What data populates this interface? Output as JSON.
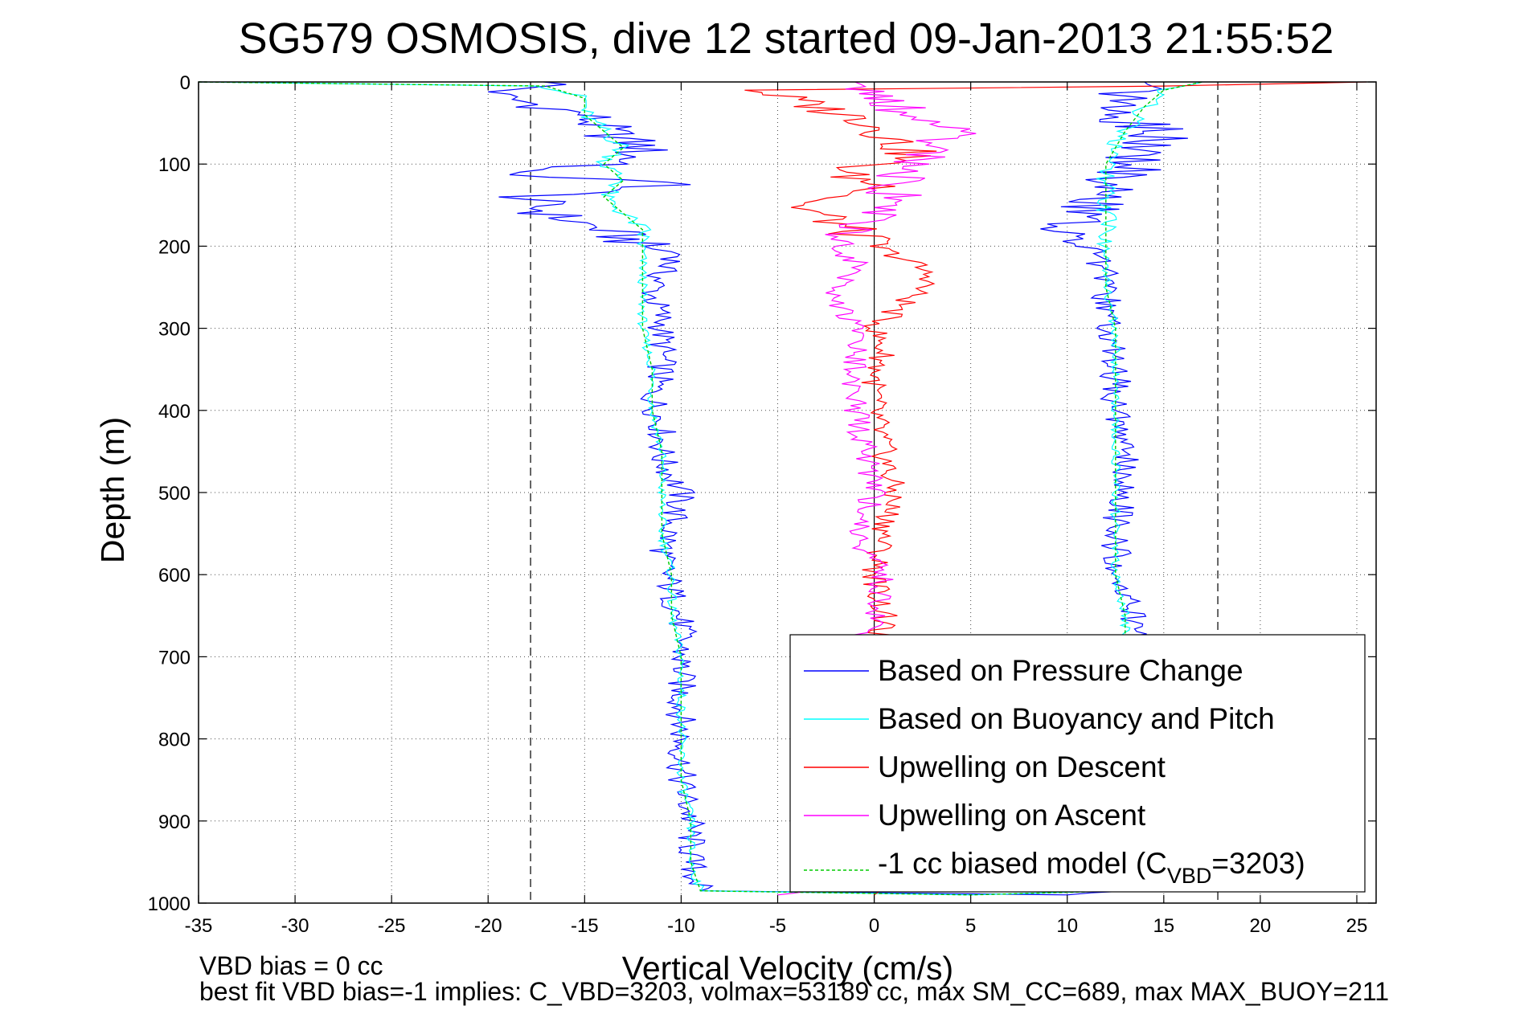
{
  "chart_data": {
    "type": "line",
    "title": "SG579 OSMOSIS, dive 12 started 09-Jan-2013 21:55:52",
    "xlabel": "Vertical Velocity (cm/s)",
    "ylabel": "Depth (m)",
    "xlim": [
      -35,
      26
    ],
    "ylim": [
      0,
      1000
    ],
    "y_reversed": true,
    "grid": true,
    "x_ticks": [
      "-35",
      "-30",
      "-25",
      "-20",
      "-15",
      "-10",
      "-5",
      "0",
      "5",
      "10",
      "15",
      "20",
      "25"
    ],
    "y_ticks": [
      "0",
      "100",
      "200",
      "300",
      "400",
      "500",
      "600",
      "700",
      "800",
      "900",
      "1000"
    ],
    "reference_lines": {
      "vertical_dashed_x": [
        -17.8,
        17.8
      ],
      "vertical_solid_x": [
        0
      ]
    },
    "legend": {
      "position": "bottom-right",
      "entries": [
        {
          "label": "Based on Pressure Change",
          "color": "#0000ff",
          "style": "solid"
        },
        {
          "label": "Based on Buoyancy and Pitch",
          "color": "#00ffff",
          "style": "solid"
        },
        {
          "label": "Upwelling on Descent",
          "color": "#ff0000",
          "style": "solid"
        },
        {
          "label": "Upwelling on Ascent",
          "color": "#ff00ff",
          "style": "solid"
        },
        {
          "label_prefix": "-1 cc biased model (C",
          "label_sub": "VBD",
          "label_suffix": "=3203)",
          "color": "#00cc00",
          "style": "dashed"
        }
      ]
    },
    "series": [
      {
        "name": "Based on Pressure Change",
        "color": "#0000ff",
        "points": [
          [
            0,
            -16
          ],
          [
            15,
            -20
          ],
          [
            40,
            -15
          ],
          [
            60,
            -14
          ],
          [
            80,
            -12
          ],
          [
            100,
            -13
          ],
          [
            110,
            -20
          ],
          [
            125,
            -10
          ],
          [
            140,
            -18
          ],
          [
            160,
            -17
          ],
          [
            180,
            -14
          ],
          [
            200,
            -12
          ],
          [
            210,
            -10
          ],
          [
            230,
            -11
          ],
          [
            260,
            -11.5
          ],
          [
            290,
            -11
          ],
          [
            320,
            -11
          ],
          [
            350,
            -11
          ],
          [
            380,
            -11.5
          ],
          [
            420,
            -11
          ],
          [
            460,
            -11
          ],
          [
            500,
            -10
          ],
          [
            540,
            -10.5
          ],
          [
            580,
            -11
          ],
          [
            620,
            -10.5
          ],
          [
            660,
            -10
          ],
          [
            700,
            -10
          ],
          [
            750,
            -10
          ],
          [
            800,
            -10
          ],
          [
            850,
            -10
          ],
          [
            900,
            -9.5
          ],
          [
            950,
            -9.5
          ],
          [
            985,
            -9
          ],
          [
            990,
            10
          ],
          [
            985,
            12.5
          ],
          [
            950,
            13
          ],
          [
            900,
            13.5
          ],
          [
            850,
            13.5
          ],
          [
            800,
            13.5
          ],
          [
            750,
            13.5
          ],
          [
            700,
            13
          ],
          [
            660,
            13.5
          ],
          [
            620,
            13
          ],
          [
            580,
            12.5
          ],
          [
            540,
            12.5
          ],
          [
            500,
            13
          ],
          [
            460,
            13
          ],
          [
            420,
            12.5
          ],
          [
            380,
            12.5
          ],
          [
            340,
            12.5
          ],
          [
            300,
            12
          ],
          [
            260,
            12
          ],
          [
            230,
            12
          ],
          [
            200,
            11
          ],
          [
            170,
            10
          ],
          [
            140,
            12
          ],
          [
            110,
            13
          ],
          [
            80,
            14
          ],
          [
            60,
            15
          ],
          [
            40,
            12
          ],
          [
            20,
            13
          ],
          [
            0,
            14
          ]
        ]
      },
      {
        "name": "Based on Buoyancy and Pitch",
        "color": "#00ffff",
        "points": [
          [
            0,
            -35
          ],
          [
            5,
            -17
          ],
          [
            20,
            -15
          ],
          [
            40,
            -15
          ],
          [
            60,
            -14
          ],
          [
            80,
            -13
          ],
          [
            100,
            -14
          ],
          [
            120,
            -13
          ],
          [
            140,
            -14
          ],
          [
            160,
            -13
          ],
          [
            180,
            -12
          ],
          [
            200,
            -12
          ],
          [
            250,
            -12
          ],
          [
            300,
            -12
          ],
          [
            350,
            -11.5
          ],
          [
            400,
            -11.5
          ],
          [
            450,
            -11
          ],
          [
            500,
            -11
          ],
          [
            550,
            -11
          ],
          [
            600,
            -10.5
          ],
          [
            650,
            -10.5
          ],
          [
            700,
            -10
          ],
          [
            750,
            -10
          ],
          [
            800,
            -10
          ],
          [
            850,
            -10
          ],
          [
            900,
            -9.5
          ],
          [
            950,
            -9.5
          ],
          [
            985,
            -9
          ],
          [
            990,
            5
          ],
          [
            985,
            13
          ],
          [
            950,
            13.5
          ],
          [
            900,
            13.5
          ],
          [
            850,
            13.5
          ],
          [
            800,
            13.5
          ],
          [
            750,
            13
          ],
          [
            700,
            13
          ],
          [
            650,
            13
          ],
          [
            600,
            12.5
          ],
          [
            550,
            12.5
          ],
          [
            500,
            12.5
          ],
          [
            450,
            12.5
          ],
          [
            400,
            12.5
          ],
          [
            350,
            12.5
          ],
          [
            300,
            12.5
          ],
          [
            250,
            12
          ],
          [
            200,
            12
          ],
          [
            150,
            12
          ],
          [
            100,
            12
          ],
          [
            60,
            13
          ],
          [
            30,
            14
          ],
          [
            10,
            15
          ],
          [
            0,
            17
          ]
        ]
      },
      {
        "name": "Upwelling on Descent",
        "color": "#ff0000",
        "points": [
          [
            0,
            25.5
          ],
          [
            5,
            15
          ],
          [
            10,
            -6
          ],
          [
            30,
            -3
          ],
          [
            50,
            0
          ],
          [
            70,
            1
          ],
          [
            90,
            2
          ],
          [
            110,
            -2
          ],
          [
            130,
            1
          ],
          [
            150,
            -4
          ],
          [
            170,
            -2
          ],
          [
            200,
            0
          ],
          [
            220,
            2
          ],
          [
            240,
            3
          ],
          [
            260,
            2
          ],
          [
            280,
            1
          ],
          [
            300,
            0
          ],
          [
            330,
            0.5
          ],
          [
            360,
            0
          ],
          [
            400,
            0
          ],
          [
            450,
            0.5
          ],
          [
            500,
            1
          ],
          [
            550,
            0.5
          ],
          [
            600,
            0
          ],
          [
            650,
            0.5
          ],
          [
            700,
            0
          ],
          [
            750,
            0
          ],
          [
            800,
            0
          ],
          [
            850,
            0
          ],
          [
            900,
            0
          ],
          [
            950,
            0
          ],
          [
            990,
            0
          ]
        ]
      },
      {
        "name": "Upwelling on Ascent",
        "color": "#ff00ff",
        "points": [
          [
            990,
            -5
          ],
          [
            985,
            -3
          ],
          [
            950,
            -2
          ],
          [
            900,
            -2
          ],
          [
            850,
            -2
          ],
          [
            800,
            -1.5
          ],
          [
            750,
            -1.5
          ],
          [
            700,
            -1
          ],
          [
            650,
            0
          ],
          [
            600,
            0.5
          ],
          [
            550,
            -1
          ],
          [
            500,
            0
          ],
          [
            450,
            -0.5
          ],
          [
            400,
            -1
          ],
          [
            350,
            -1
          ],
          [
            300,
            -1
          ],
          [
            260,
            -2
          ],
          [
            220,
            -1
          ],
          [
            200,
            -2
          ],
          [
            180,
            -1
          ],
          [
            150,
            1
          ],
          [
            120,
            1
          ],
          [
            100,
            2
          ],
          [
            80,
            3
          ],
          [
            60,
            4
          ],
          [
            40,
            2
          ],
          [
            20,
            0
          ],
          [
            0,
            -1
          ]
        ]
      },
      {
        "name": "-1 cc biased model (CVBD=3203)",
        "color": "#00cc00",
        "dashed": true,
        "points": [
          [
            0,
            -35
          ],
          [
            5,
            -17
          ],
          [
            20,
            -15
          ],
          [
            40,
            -15
          ],
          [
            60,
            -14
          ],
          [
            80,
            -13
          ],
          [
            100,
            -14
          ],
          [
            120,
            -13
          ],
          [
            140,
            -14
          ],
          [
            160,
            -13
          ],
          [
            180,
            -12
          ],
          [
            200,
            -12
          ],
          [
            250,
            -12
          ],
          [
            300,
            -12
          ],
          [
            350,
            -11.5
          ],
          [
            400,
            -11.5
          ],
          [
            450,
            -11
          ],
          [
            500,
            -11
          ],
          [
            550,
            -11
          ],
          [
            600,
            -10.5
          ],
          [
            650,
            -10.5
          ],
          [
            700,
            -10
          ],
          [
            750,
            -10
          ],
          [
            800,
            -10
          ],
          [
            850,
            -10
          ],
          [
            900,
            -9.5
          ],
          [
            950,
            -9.5
          ],
          [
            985,
            -9
          ],
          [
            990,
            5
          ],
          [
            985,
            13
          ],
          [
            950,
            13.5
          ],
          [
            900,
            13.5
          ],
          [
            850,
            13.5
          ],
          [
            800,
            13.5
          ],
          [
            750,
            13
          ],
          [
            700,
            13
          ],
          [
            650,
            13
          ],
          [
            600,
            12.5
          ],
          [
            550,
            12.5
          ],
          [
            500,
            12.5
          ],
          [
            450,
            12.5
          ],
          [
            400,
            12.5
          ],
          [
            350,
            12.5
          ],
          [
            300,
            12.5
          ],
          [
            250,
            12
          ],
          [
            200,
            12
          ],
          [
            150,
            12
          ],
          [
            100,
            12
          ],
          [
            60,
            13
          ],
          [
            30,
            14
          ],
          [
            10,
            15
          ],
          [
            0,
            17
          ]
        ]
      }
    ],
    "annotations": [
      "VBD bias = 0 cc",
      "best fit VBD bias=-1 implies: C_VBD=3203, volmax=53189 cc, max SM_CC=689, max MAX_BUOY=211"
    ]
  }
}
